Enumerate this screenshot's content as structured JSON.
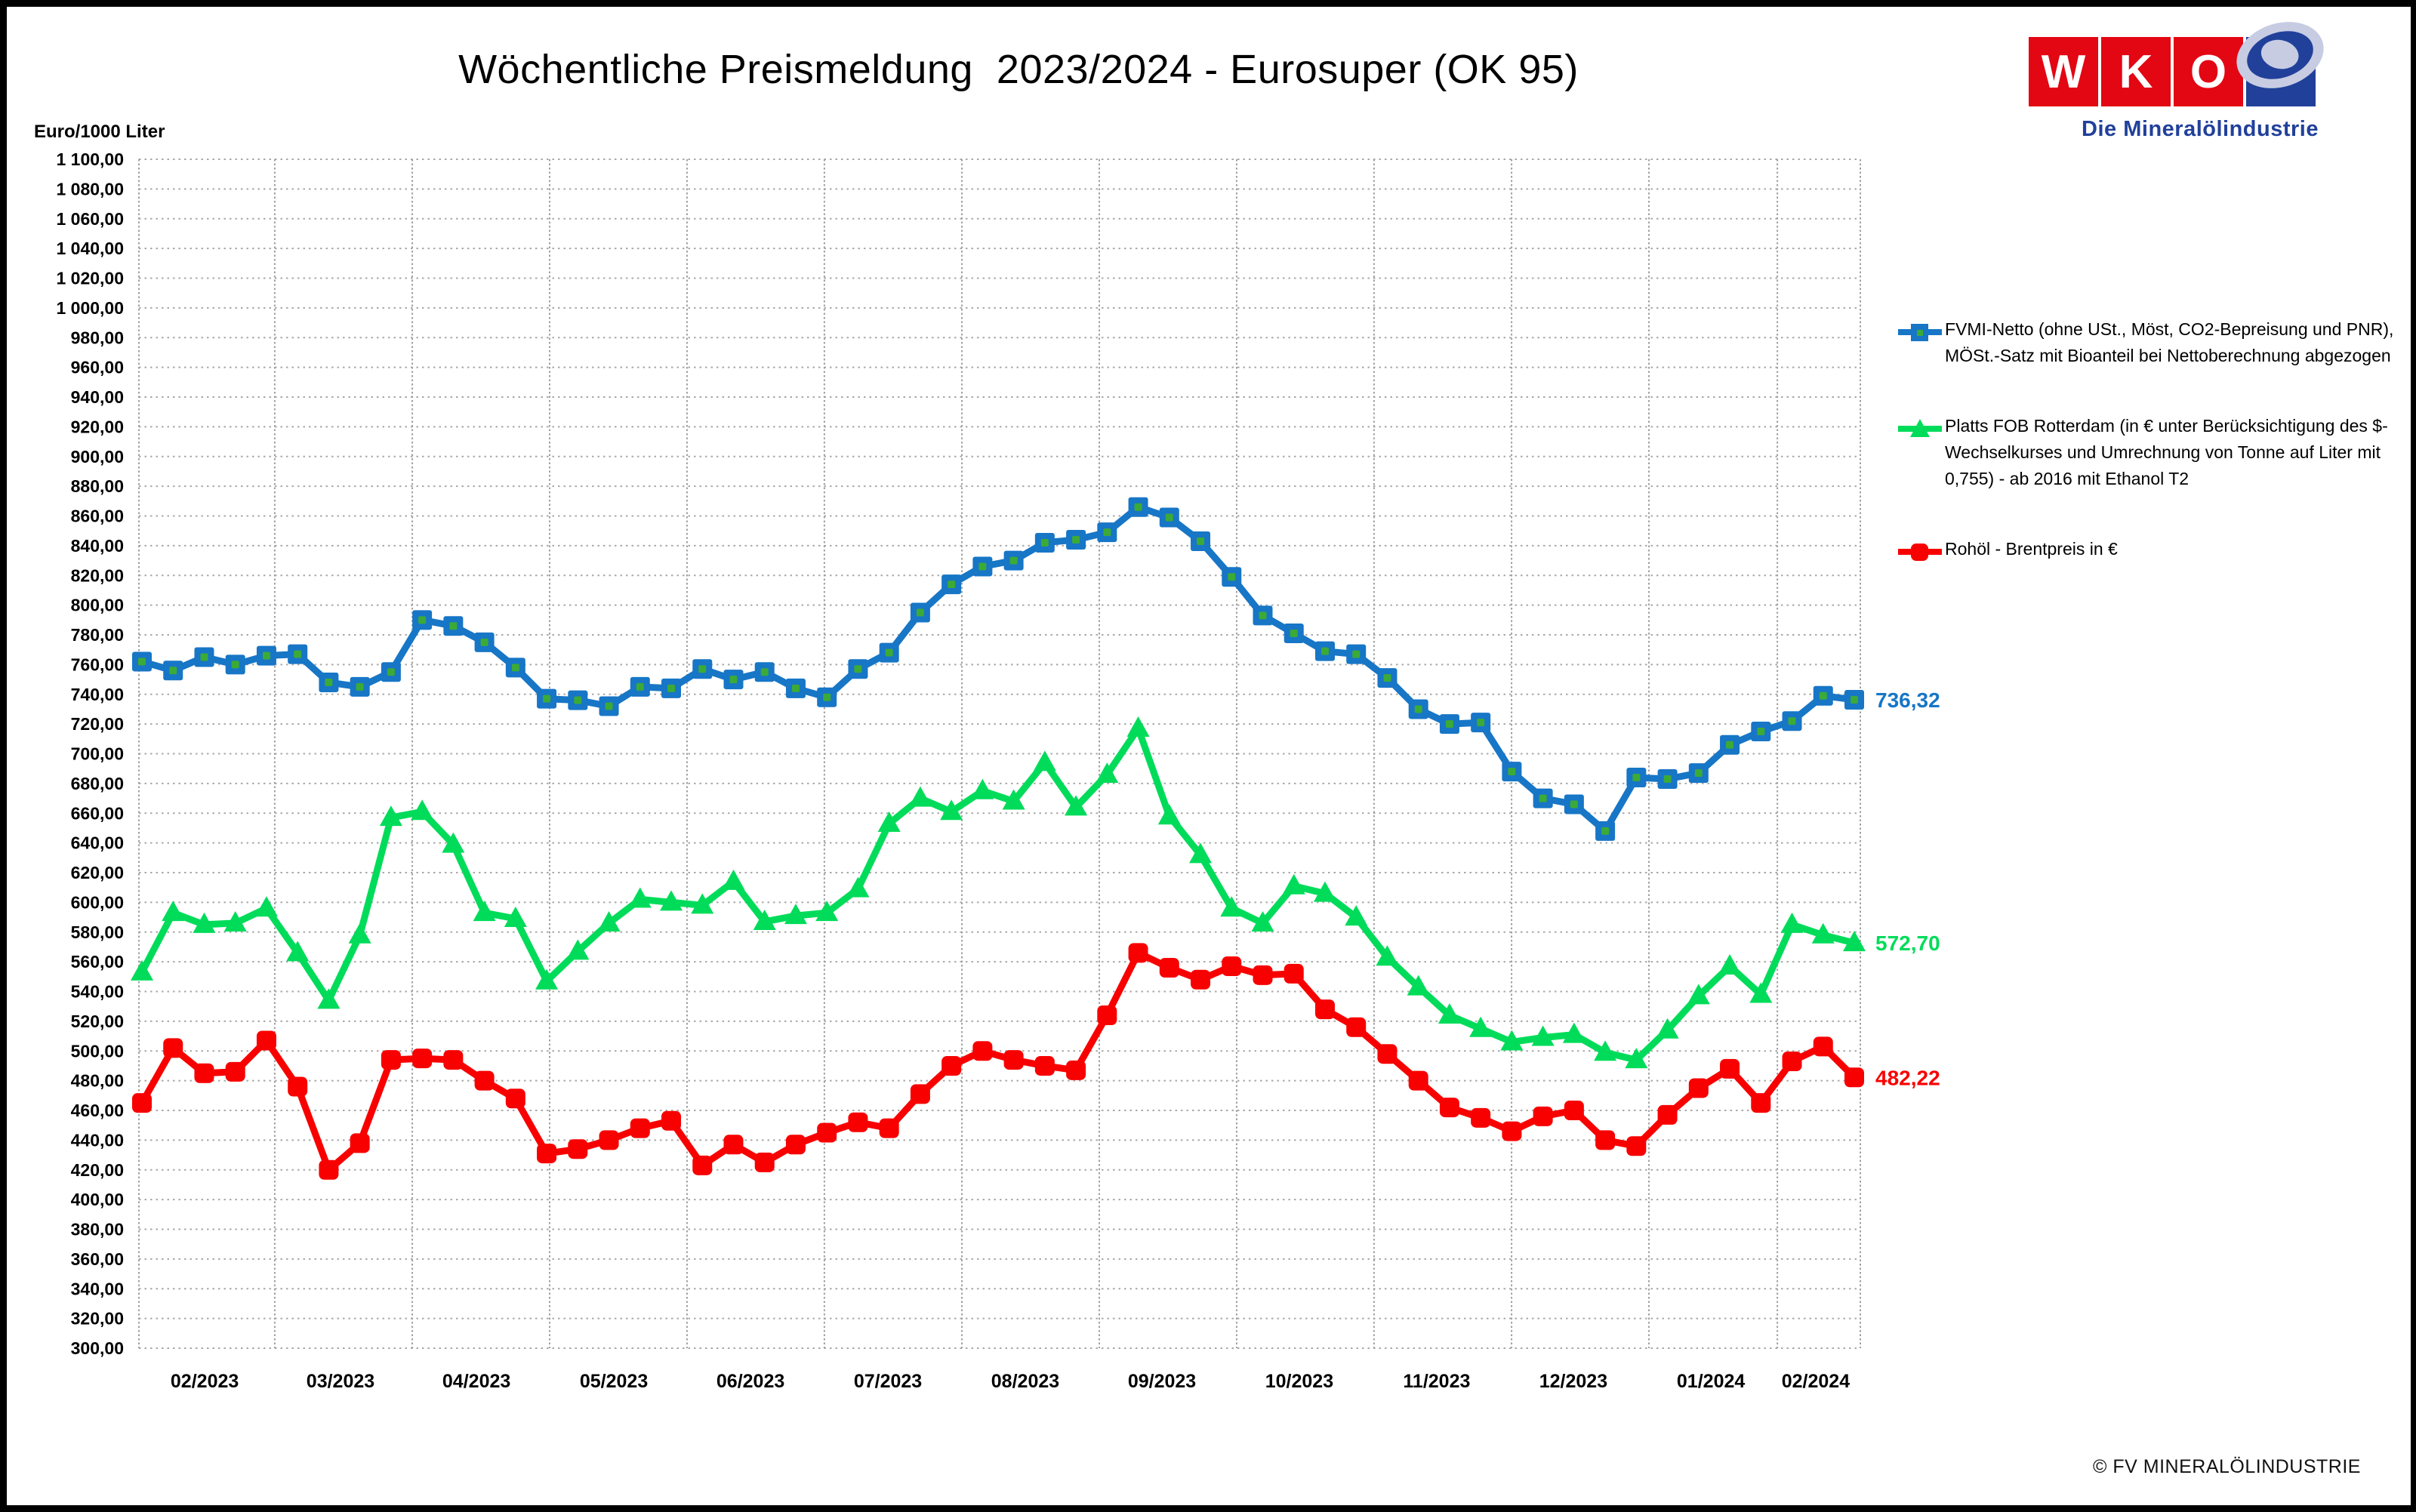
{
  "title": "Wöchentliche Preismeldung  2023/2024 - Eurosuper (OK 95)",
  "unit_label": "Euro/1000 Liter",
  "footer_credit": "© FV MINERALÖLINDUSTRIE",
  "logo": {
    "letters": [
      "W",
      "K",
      "O"
    ],
    "subtitle": "Die Mineralölindustrie",
    "red": "#E30613",
    "blue": "#21409A"
  },
  "legend": {
    "items": [
      {
        "label": "FVMI-Netto (ohne USt., Möst, CO2-Bepreisung und PNR), MÖSt.-Satz mit Bioanteil bei Nettoberechnung abgezogen",
        "color": "#1776C6",
        "marker": "square"
      },
      {
        "label": "Platts FOB Rotterdam (in € unter Berücksichtigung des $-Wechselkurses und Umrechnung von Tonne auf Liter mit 0,755) - ab 2016 mit Ethanol T2",
        "color": "#00DC5A",
        "marker": "triangle"
      },
      {
        "label": "Rohöl - Brentpreis in €",
        "color": "#F80000",
        "marker": "square-red"
      }
    ]
  },
  "chart_data": {
    "type": "line",
    "title": "Wöchentliche Preismeldung 2023/2024 - Eurosuper (OK 95)",
    "ylabel": "Euro/1000 Liter",
    "grid": true,
    "legend_position": "right",
    "y_axis": {
      "min": 300,
      "max": 1100,
      "step": 20,
      "tick_labels": [
        "1 100,00",
        "1 080,00",
        "1 060,00",
        "1 040,00",
        "1 020,00",
        "1 000,00",
        "980,00",
        "960,00",
        "940,00",
        "920,00",
        "900,00",
        "880,00",
        "860,00",
        "840,00",
        "820,00",
        "800,00",
        "780,00",
        "760,00",
        "740,00",
        "720,00",
        "700,00",
        "680,00",
        "660,00",
        "640,00",
        "620,00",
        "600,00",
        "580,00",
        "560,00",
        "540,00",
        "520,00",
        "500,00",
        "480,00",
        "460,00",
        "440,00",
        "420,00",
        "400,00",
        "380,00",
        "360,00",
        "340,00",
        "320,00",
        "300,00"
      ]
    },
    "x_tick_labels": [
      "02/2023",
      "03/2023",
      "04/2023",
      "05/2023",
      "06/2023",
      "07/2023",
      "08/2023",
      "09/2023",
      "10/2023",
      "11/2023",
      "12/2023",
      "01/2024",
      "02/2024"
    ],
    "series": [
      {
        "name": "FVMI-Netto (ohne USt., Möst, CO2-Bepreisung und PNR), MÖSt.-Satz mit Bioanteil bei Nettoberechnung abgezogen",
        "color": "#1776C6",
        "marker": "square",
        "marker_center_color": "#3CAA36",
        "end_label": "736,32",
        "values": [
          762,
          756,
          765,
          760,
          766,
          767,
          748,
          745,
          755,
          790,
          786,
          775,
          758,
          737,
          736,
          732,
          745,
          744,
          757,
          750,
          755,
          744,
          738,
          757,
          768,
          795,
          814,
          826,
          830,
          842,
          844,
          849,
          866,
          859,
          843,
          819,
          793,
          781,
          769,
          767,
          751,
          730,
          720,
          721,
          688,
          670,
          666,
          648,
          684,
          683,
          687,
          706,
          715,
          722,
          739,
          736.32
        ]
      },
      {
        "name": "Platts FOB Rotterdam (in € unter Berücksichtigung des $-Wechselkurses und Umrechnung von Tonne auf Liter mit 0,755) - ab 2016 mit Ethanol T2",
        "color": "#00DC5A",
        "marker": "triangle",
        "end_label": "572,70",
        "values": [
          553,
          593,
          585,
          586,
          596,
          566,
          534,
          578,
          657,
          661,
          639,
          593,
          589,
          547,
          567,
          586,
          602,
          600,
          598,
          614,
          587,
          591,
          593,
          609,
          653,
          670,
          661,
          675,
          668,
          694,
          664,
          686,
          717,
          658,
          632,
          596,
          586,
          611,
          606,
          590,
          563,
          543,
          524,
          515,
          506,
          509,
          511,
          499,
          494,
          514,
          537,
          557,
          538,
          585,
          578,
          572.7
        ]
      },
      {
        "name": "Rohöl - Brentpreis in €",
        "color": "#F80000",
        "marker": "square-red",
        "end_label": "482,22",
        "values": [
          465,
          502,
          485,
          486,
          507,
          476,
          420,
          438,
          494,
          495,
          494,
          480,
          468,
          431,
          434,
          440,
          448,
          453,
          423,
          437,
          425,
          437,
          445,
          452,
          448,
          471,
          490,
          500,
          494,
          490,
          487,
          524,
          566,
          556,
          548,
          557,
          551,
          552,
          528,
          516,
          498,
          480,
          462,
          455,
          446,
          456,
          460,
          440,
          436,
          457,
          475,
          488,
          465,
          493,
          503,
          482.22
        ]
      }
    ]
  }
}
